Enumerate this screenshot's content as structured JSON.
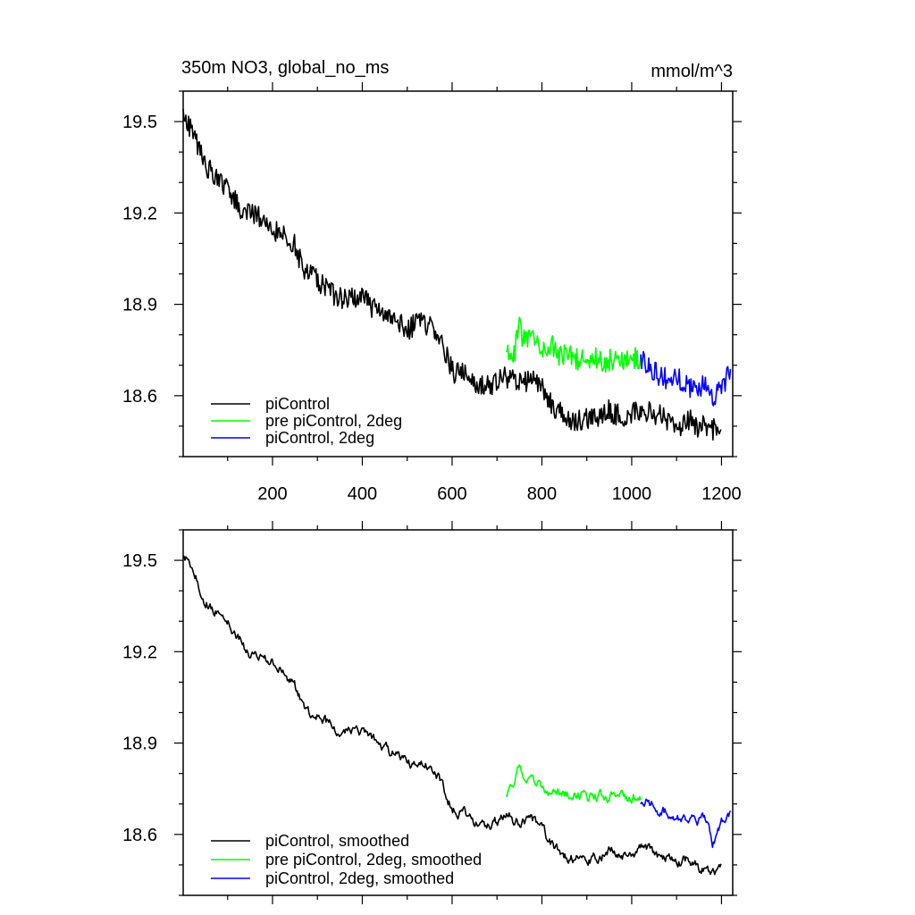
{
  "chart_data": [
    {
      "type": "line",
      "title": "350m NO3, global_no_ms",
      "units": "mmol/m^3",
      "xlim": [
        1,
        1225
      ],
      "ylim": [
        18.4,
        19.6
      ],
      "x_ticks": [
        200,
        400,
        600,
        800,
        1000,
        1200
      ],
      "y_ticks": [
        18.6,
        18.9,
        19.2,
        19.5
      ],
      "y_tick_labels": [
        "18.6",
        "18.9",
        "19.2",
        "19.5"
      ],
      "legend_position": "bottom-left",
      "grid": false,
      "series": [
        {
          "name": "piControl",
          "color": "#000000",
          "x": [
            1,
            25,
            50,
            75,
            100,
            125,
            150,
            175,
            200,
            225,
            250,
            275,
            300,
            325,
            350,
            375,
            400,
            425,
            450,
            475,
            500,
            525,
            550,
            575,
            600,
            625,
            650,
            675,
            700,
            725,
            750,
            775,
            800,
            825,
            850,
            875,
            900,
            925,
            950,
            975,
            1000,
            1025,
            1050,
            1075,
            1100,
            1125,
            1150,
            1175,
            1200
          ],
          "y": [
            19.53,
            19.45,
            19.36,
            19.31,
            19.27,
            19.22,
            19.2,
            19.18,
            19.15,
            19.13,
            19.09,
            19.0,
            18.98,
            18.94,
            18.92,
            18.93,
            18.92,
            18.89,
            18.87,
            18.85,
            18.82,
            18.84,
            18.83,
            18.79,
            18.68,
            18.67,
            18.65,
            18.63,
            18.65,
            18.66,
            18.64,
            18.66,
            18.63,
            18.56,
            18.53,
            18.52,
            18.53,
            18.52,
            18.55,
            18.53,
            18.54,
            18.55,
            18.54,
            18.53,
            18.49,
            18.52,
            18.5,
            18.49,
            18.5
          ]
        },
        {
          "name": "pre piControl, 2deg",
          "color": "#00ff00",
          "x": [
            720,
            740,
            750,
            760,
            780,
            800,
            820,
            840,
            860,
            880,
            900,
            920,
            940,
            960,
            980,
            1000,
            1020
          ],
          "y": [
            18.73,
            18.75,
            18.82,
            18.78,
            18.8,
            18.76,
            18.77,
            18.73,
            18.74,
            18.72,
            18.71,
            18.72,
            18.71,
            18.72,
            18.71,
            18.72,
            18.72
          ]
        },
        {
          "name": "piControl, 2deg",
          "color": "#0000ff",
          "x": [
            1020,
            1040,
            1060,
            1080,
            1100,
            1120,
            1140,
            1160,
            1180,
            1200,
            1220
          ],
          "y": [
            18.72,
            18.7,
            18.67,
            18.65,
            18.66,
            18.64,
            18.62,
            18.64,
            18.6,
            18.63,
            18.67
          ]
        }
      ]
    },
    {
      "type": "line",
      "title": "",
      "xlim": [
        1,
        1225
      ],
      "ylim": [
        18.4,
        19.6
      ],
      "x_ticks": [
        200,
        400,
        600,
        800,
        1000,
        1200
      ],
      "y_ticks": [
        18.6,
        18.9,
        19.2,
        19.5
      ],
      "y_tick_labels": [
        "18.6",
        "18.9",
        "19.2",
        "19.5"
      ],
      "legend_position": "bottom-left",
      "grid": false,
      "series": [
        {
          "name": "piControl, smoothed",
          "color": "#000000",
          "x": [
            1,
            25,
            50,
            75,
            100,
            125,
            150,
            175,
            200,
            225,
            250,
            275,
            300,
            325,
            350,
            375,
            400,
            425,
            450,
            475,
            500,
            525,
            550,
            575,
            600,
            625,
            650,
            675,
            700,
            725,
            750,
            775,
            800,
            825,
            850,
            875,
            900,
            925,
            950,
            975,
            1000,
            1025,
            1050,
            1075,
            1100,
            1125,
            1150,
            1175,
            1200
          ],
          "y": [
            19.52,
            19.46,
            19.37,
            19.33,
            19.3,
            19.24,
            19.19,
            19.18,
            19.16,
            19.13,
            19.08,
            19.0,
            18.99,
            18.96,
            18.94,
            18.94,
            18.93,
            18.91,
            18.88,
            18.86,
            18.83,
            18.84,
            18.83,
            18.78,
            18.68,
            18.67,
            18.65,
            18.63,
            18.64,
            18.66,
            18.64,
            18.66,
            18.61,
            18.56,
            18.53,
            18.52,
            18.53,
            18.52,
            18.55,
            18.53,
            18.53,
            18.55,
            18.54,
            18.52,
            18.5,
            18.52,
            18.49,
            18.47,
            18.5
          ]
        },
        {
          "name": "pre piControl, 2deg, smoothed",
          "color": "#00ff00",
          "x": [
            720,
            740,
            750,
            760,
            780,
            800,
            820,
            840,
            860,
            880,
            900,
            920,
            940,
            960,
            980,
            1000,
            1020
          ],
          "y": [
            18.74,
            18.76,
            18.83,
            18.8,
            18.79,
            18.76,
            18.74,
            18.73,
            18.73,
            18.73,
            18.72,
            18.73,
            18.72,
            18.73,
            18.72,
            18.72,
            18.71
          ]
        },
        {
          "name": "piControl, 2deg, smoothed",
          "color": "#0000ff",
          "x": [
            1020,
            1040,
            1060,
            1080,
            1100,
            1120,
            1140,
            1160,
            1180,
            1200,
            1220
          ],
          "y": [
            18.71,
            18.7,
            18.68,
            18.67,
            18.66,
            18.65,
            18.64,
            18.66,
            18.57,
            18.64,
            18.66
          ]
        }
      ]
    }
  ]
}
